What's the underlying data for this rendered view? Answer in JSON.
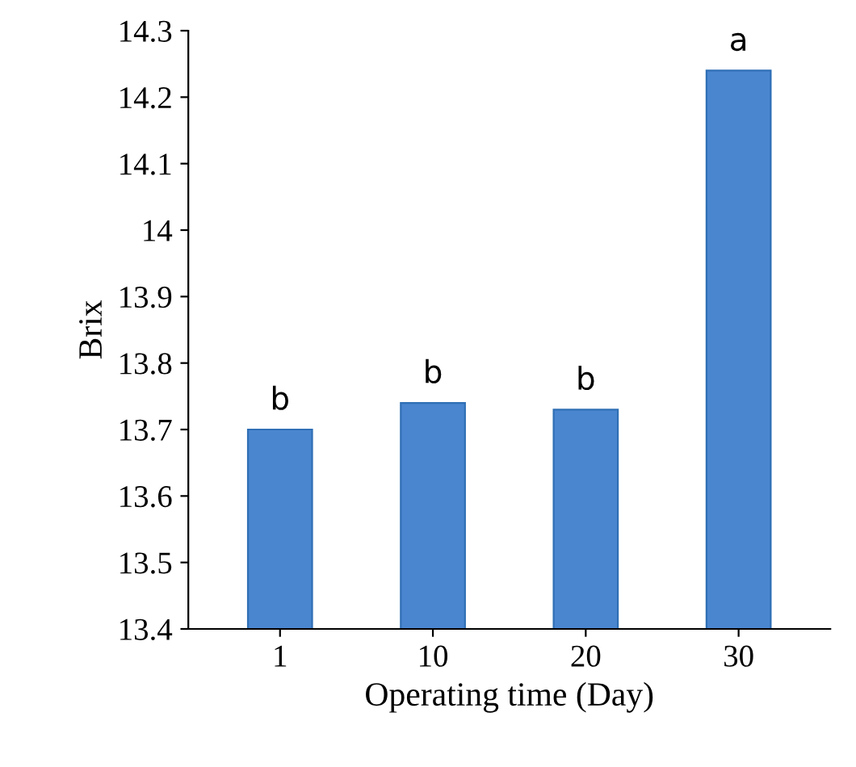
{
  "chart_data": {
    "type": "bar",
    "xlabel": "Operating time (Day)",
    "ylabel": "Brix",
    "categories": [
      "1",
      "10",
      "20",
      "30"
    ],
    "values": [
      13.7,
      13.74,
      13.73,
      14.24
    ],
    "color": "#4a86d0",
    "ylim": [
      13.4,
      14.3
    ],
    "yticks": [
      13.4,
      13.5,
      13.6,
      13.7,
      13.8,
      13.9,
      14,
      14.1,
      14.2,
      14.3
    ],
    "grid": false,
    "annotations": [
      {
        "text": "b",
        "x": "1",
        "y": 13.7
      },
      {
        "text": "b",
        "x": "10",
        "y": 13.74
      },
      {
        "text": "b",
        "x": "20",
        "y": 13.73
      },
      {
        "text": "a",
        "x": "30",
        "y": 14.24
      }
    ]
  }
}
